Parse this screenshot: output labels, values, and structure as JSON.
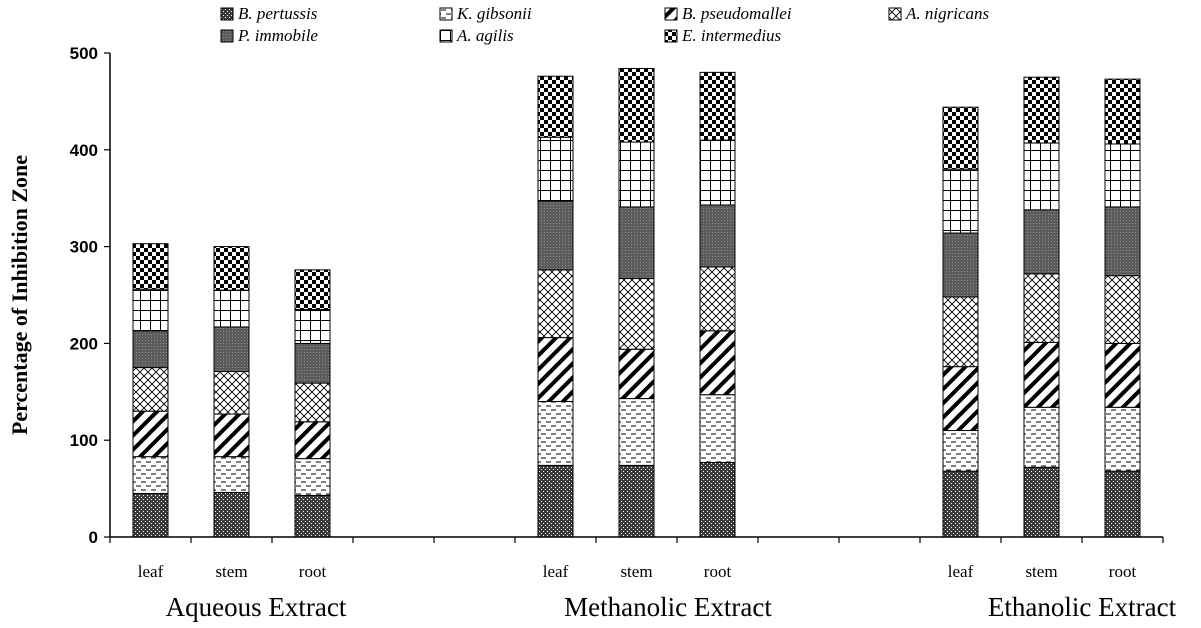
{
  "chart_data": {
    "type": "bar",
    "stacked": true,
    "title": "",
    "ylabel": "Percentage of Inhibition Zone",
    "ylim": [
      0,
      500
    ],
    "yticks": [
      "0",
      "100",
      "200",
      "300",
      "400",
      "500"
    ],
    "grid": false,
    "legend_position": "top",
    "groups": [
      {
        "label": "Aqueous Extract",
        "categories": [
          "leaf",
          "stem",
          "root"
        ]
      },
      {
        "label": "Methanolic Extract",
        "categories": [
          "leaf",
          "stem",
          "root"
        ]
      },
      {
        "label": "Ethanolic Extract",
        "categories": [
          "leaf",
          "stem",
          "root"
        ]
      }
    ],
    "series": [
      {
        "name": "B. pertussis",
        "pattern": "dots",
        "values": [
          45,
          46,
          43,
          74,
          74,
          77,
          68,
          72,
          68
        ]
      },
      {
        "name": "K. gibsonii",
        "pattern": "dashes",
        "values": [
          38,
          37,
          38,
          66,
          69,
          70,
          42,
          62,
          66
        ]
      },
      {
        "name": "B. pseudomallei",
        "pattern": "diag-stripes",
        "values": [
          47,
          44,
          38,
          66,
          51,
          66,
          66,
          67,
          66
        ]
      },
      {
        "name": "A. nigricans",
        "pattern": "crosshatch",
        "values": [
          45,
          44,
          40,
          70,
          73,
          66,
          72,
          71,
          70
        ]
      },
      {
        "name": "P. immobile",
        "pattern": "dark-dots",
        "values": [
          38,
          46,
          41,
          71,
          74,
          64,
          66,
          66,
          71
        ]
      },
      {
        "name": "A. agilis",
        "pattern": "grid",
        "values": [
          43,
          38,
          35,
          66,
          67,
          67,
          66,
          69,
          65
        ]
      },
      {
        "name": "E. intermedius",
        "pattern": "checker",
        "values": [
          47,
          45,
          41,
          63,
          76,
          70,
          64,
          68,
          67
        ]
      }
    ]
  }
}
